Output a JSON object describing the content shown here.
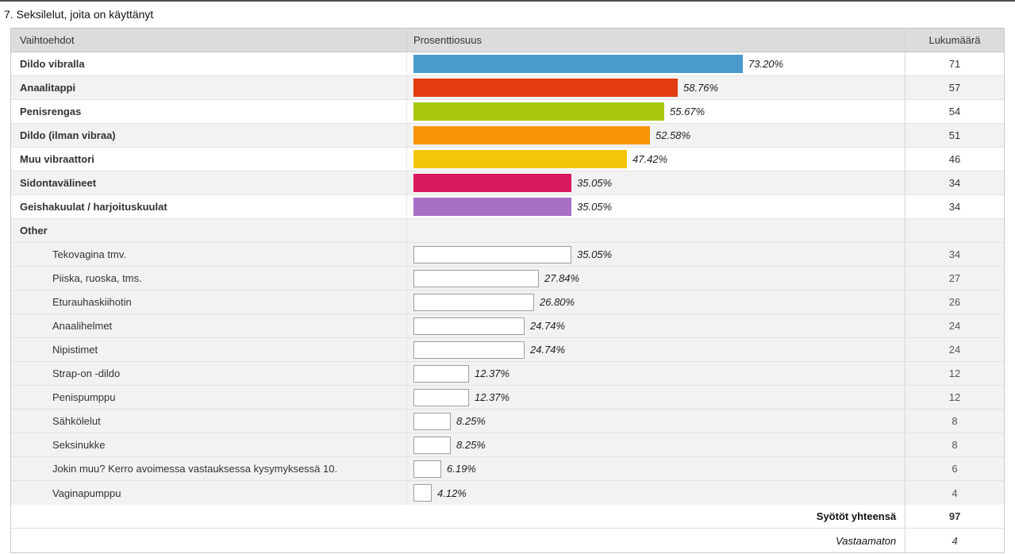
{
  "page": {
    "title": "7. Seksilelut, joita on käyttänyt"
  },
  "table": {
    "columns": {
      "options": "Vaihtoehdot",
      "percentage": "Prosenttiosuus",
      "count": "Lukumäärä"
    },
    "rows": [
      {
        "type": "main",
        "label": "Dildo vibralla",
        "percent": "73.20%",
        "value": 73.2,
        "count": "71",
        "color": "#4a9bcd"
      },
      {
        "type": "main",
        "label": "Anaalitappi",
        "percent": "58.76%",
        "value": 58.76,
        "count": "57",
        "color": "#e23c10"
      },
      {
        "type": "main",
        "label": "Penisrengas",
        "percent": "55.67%",
        "value": 55.67,
        "count": "54",
        "color": "#a8c80f"
      },
      {
        "type": "main",
        "label": "Dildo (ilman vibraa)",
        "percent": "52.58%",
        "value": 52.58,
        "count": "51",
        "color": "#f89406"
      },
      {
        "type": "main",
        "label": "Muu vibraattori",
        "percent": "47.42%",
        "value": 47.42,
        "count": "46",
        "color": "#f5c50c"
      },
      {
        "type": "main",
        "label": "Sidontavälineet",
        "percent": "35.05%",
        "value": 35.05,
        "count": "34",
        "color": "#d9195f"
      },
      {
        "type": "main",
        "label": "Geishakuulat / harjoituskuulat",
        "percent": "35.05%",
        "value": 35.05,
        "count": "34",
        "color": "#a76fc5"
      },
      {
        "type": "group",
        "label": "Other",
        "percent": "",
        "value": 0,
        "count": "",
        "color": null
      },
      {
        "type": "sub",
        "label": "Tekovagina tmv.",
        "percent": "35.05%",
        "value": 35.05,
        "count": "34",
        "color": null
      },
      {
        "type": "sub",
        "label": "Piiska, ruoska, tms.",
        "percent": "27.84%",
        "value": 27.84,
        "count": "27",
        "color": null
      },
      {
        "type": "sub",
        "label": "Eturauhaskiihotin",
        "percent": "26.80%",
        "value": 26.8,
        "count": "26",
        "color": null
      },
      {
        "type": "sub",
        "label": "Anaalihelmet",
        "percent": "24.74%",
        "value": 24.74,
        "count": "24",
        "color": null
      },
      {
        "type": "sub",
        "label": "Nipistimet",
        "percent": "24.74%",
        "value": 24.74,
        "count": "24",
        "color": null
      },
      {
        "type": "sub",
        "label": "Strap-on -dildo",
        "percent": "12.37%",
        "value": 12.37,
        "count": "12",
        "color": null
      },
      {
        "type": "sub",
        "label": "Penispumppu",
        "percent": "12.37%",
        "value": 12.37,
        "count": "12",
        "color": null
      },
      {
        "type": "sub",
        "label": "Sähkölelut",
        "percent": "8.25%",
        "value": 8.25,
        "count": "8",
        "color": null
      },
      {
        "type": "sub",
        "label": "Seksinukke",
        "percent": "8.25%",
        "value": 8.25,
        "count": "8",
        "color": null
      },
      {
        "type": "sub",
        "label": "Jokin muu? Kerro avoimessa vastauksessa kysymyksessä 10.",
        "percent": "6.19%",
        "value": 6.19,
        "count": "6",
        "color": null
      },
      {
        "type": "sub",
        "label": "Vaginapumppu",
        "percent": "4.12%",
        "value": 4.12,
        "count": "4",
        "color": null
      }
    ],
    "footer": [
      {
        "label": "Syötöt yhteensä",
        "count": "97"
      },
      {
        "label": "Vastaamaton",
        "count": "4"
      }
    ]
  },
  "chart_data": {
    "type": "bar",
    "orientation": "horizontal",
    "title": "7. Seksilelut, joita on käyttänyt",
    "categories": [
      "Dildo vibralla",
      "Anaalitappi",
      "Penisrengas",
      "Dildo (ilman vibraa)",
      "Muu vibraattori",
      "Sidontavälineet",
      "Geishakuulat / harjoituskuulat",
      "Tekovagina tmv.",
      "Piiska, ruoska, tms.",
      "Eturauhaskiihotin",
      "Anaalihelmet",
      "Nipistimet",
      "Strap-on -dildo",
      "Penispumppu",
      "Sähkölelut",
      "Seksinukke",
      "Jokin muu? Kerro avoimessa vastauksessa kysymyksessä 10.",
      "Vaginapumppu"
    ],
    "series": [
      {
        "name": "Prosenttiosuus",
        "values": [
          73.2,
          58.76,
          55.67,
          52.58,
          47.42,
          35.05,
          35.05,
          35.05,
          27.84,
          26.8,
          24.74,
          24.74,
          12.37,
          12.37,
          8.25,
          8.25,
          6.19,
          4.12
        ]
      },
      {
        "name": "Lukumäärä",
        "values": [
          71,
          57,
          54,
          51,
          46,
          34,
          34,
          34,
          27,
          26,
          24,
          24,
          12,
          12,
          8,
          8,
          6,
          4
        ]
      }
    ],
    "bar_colors": [
      "#4a9bcd",
      "#e23c10",
      "#a8c80f",
      "#f89406",
      "#f5c50c",
      "#d9195f",
      "#a76fc5",
      "#ffffff",
      "#ffffff",
      "#ffffff",
      "#ffffff",
      "#ffffff",
      "#ffffff",
      "#ffffff",
      "#ffffff",
      "#ffffff",
      "#ffffff",
      "#ffffff"
    ],
    "totals": {
      "Syötöt yhteensä": 97,
      "Vastaamaton": 4
    },
    "xlim": [
      0,
      100
    ],
    "grid": false,
    "legend": false
  }
}
